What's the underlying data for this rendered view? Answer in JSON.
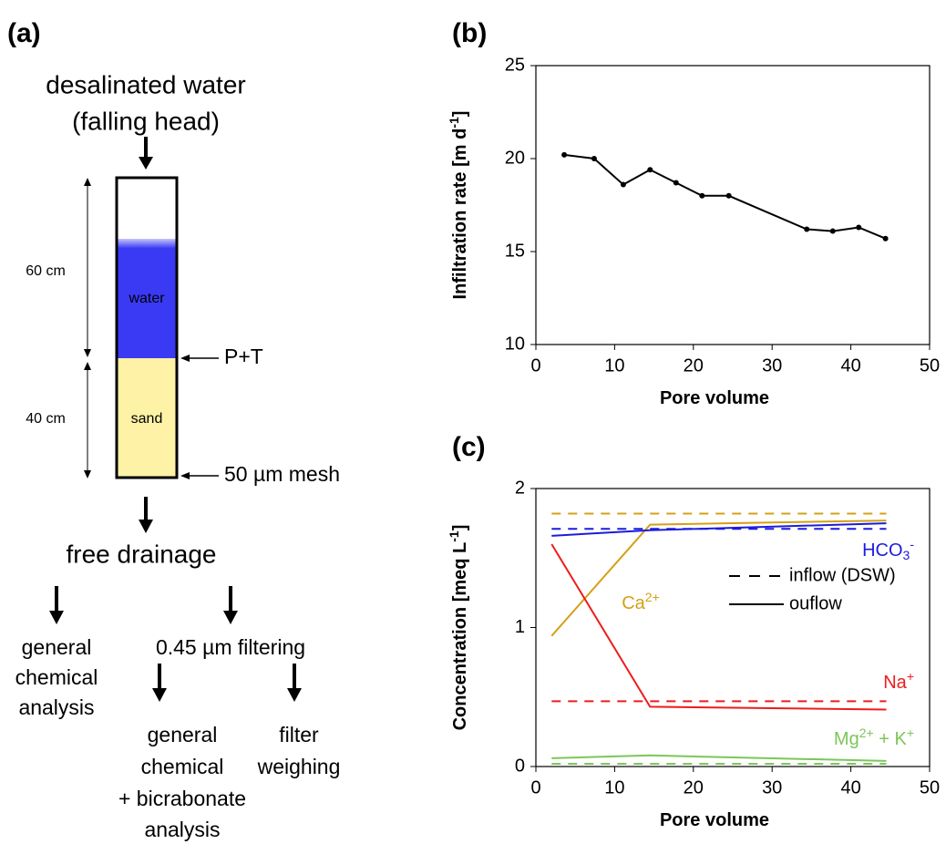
{
  "panel_labels": [
    "(a)",
    "(b)",
    "(c)"
  ],
  "diagram": {
    "source": [
      "desalinated water",
      "(falling head)"
    ],
    "heights": [
      "60 cm",
      "40 cm"
    ],
    "layers": [
      "water",
      "sand"
    ],
    "sensors": [
      "P+T",
      "50 µm mesh"
    ],
    "outlet": "free drainage",
    "branch_left": [
      "general",
      "chemical",
      "analysis"
    ],
    "branch_right": "0.45 µm filtering",
    "sub_left": [
      "general",
      "chemical",
      "+ bicrabonate",
      "analysis"
    ],
    "sub_right": [
      "filter",
      "weighing"
    ]
  },
  "chart_data": [
    {
      "type": "line",
      "color": "#000000",
      "xlabel": [
        {
          "text": "Pore volume"
        }
      ],
      "ylabel": [
        {
          "text": "Infiltration rate [m d"
        },
        {
          "sup": "-1"
        },
        {
          "text": "]"
        }
      ],
      "x": [
        3.6,
        7.4,
        11.1,
        14.5,
        17.8,
        21.1,
        24.5,
        34.4,
        37.7,
        41.0,
        44.4
      ],
      "values": [
        20.2,
        20.0,
        18.6,
        19.4,
        18.7,
        18.0,
        18.0,
        16.2,
        16.1,
        16.3,
        15.7
      ],
      "xlim": [
        0,
        50
      ],
      "xticks": [
        0,
        10,
        20,
        30,
        40,
        50
      ],
      "ylim": [
        10,
        25
      ],
      "yticks": [
        10,
        15,
        20,
        25
      ],
      "markers": true
    },
    {
      "type": "line",
      "xlabel": [
        {
          "text": "Pore volume"
        }
      ],
      "ylabel": [
        {
          "text": "Concentration [meq L"
        },
        {
          "sup": "-1"
        },
        {
          "text": "]"
        }
      ],
      "x": [
        2,
        14.5,
        44.5
      ],
      "series": [
        {
          "color": "#d4a017",
          "dash": true,
          "values": [
            1.82,
            1.82,
            1.82
          ]
        },
        {
          "color": "#1c1cdc",
          "dash": true,
          "values": [
            1.71,
            1.71,
            1.71
          ]
        },
        {
          "color": "#ee1c1c",
          "dash": true,
          "values": [
            0.47,
            0.47,
            0.47
          ]
        },
        {
          "color": "#7dc65a",
          "dash": true,
          "values": [
            0.02,
            0.02,
            0.02
          ]
        },
        {
          "color": "#d4a017",
          "dash": false,
          "values": [
            0.94,
            1.74,
            1.77
          ]
        },
        {
          "color": "#1c1cdc",
          "dash": false,
          "values": [
            1.66,
            1.7,
            1.75
          ]
        },
        {
          "color": "#ee1c1c",
          "dash": false,
          "values": [
            1.6,
            0.43,
            0.41
          ]
        },
        {
          "color": "#7dc65a",
          "dash": false,
          "values": [
            0.06,
            0.08,
            0.04
          ]
        }
      ],
      "annotations": [
        {
          "color": "#d4a017",
          "label": [
            {
              "text": "Ca"
            },
            {
              "sup": "2+"
            }
          ]
        },
        {
          "color": "#1c1cdc",
          "label": [
            {
              "text": "HCO"
            },
            {
              "sub": "3"
            },
            {
              "sup": "-"
            }
          ]
        },
        {
          "color": "#ee1c1c",
          "label": [
            {
              "text": "Na"
            },
            {
              "sup": "+"
            }
          ]
        },
        {
          "color": "#7dc65a",
          "label": [
            {
              "text": "Mg"
            },
            {
              "sup": "2+"
            },
            {
              "text": " + K"
            },
            {
              "sup": "+"
            }
          ]
        }
      ],
      "legend": [
        {
          "label": "inflow (DSW)",
          "dash": true
        },
        {
          "label": "ouflow",
          "dash": false
        }
      ],
      "xlim": [
        0,
        50
      ],
      "xticks": [
        0,
        10,
        20,
        30,
        40,
        50
      ],
      "ylim": [
        0,
        2
      ],
      "yticks": [
        0,
        1,
        2
      ]
    }
  ]
}
